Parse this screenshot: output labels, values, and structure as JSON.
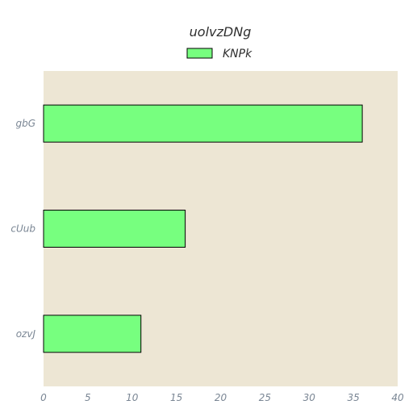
{
  "chart_data": {
    "type": "bar",
    "orientation": "horizontal",
    "title": "uolvzDNg",
    "xlabel": "",
    "ylabel": "",
    "categories": [
      "gbG",
      "cUub",
      "ozvJ"
    ],
    "series": [
      {
        "name": "KNPk",
        "values": [
          36,
          16,
          11
        ]
      }
    ],
    "xlim": [
      0,
      40
    ],
    "xticks": [
      "0",
      "5",
      "10",
      "15",
      "20",
      "25",
      "30",
      "35",
      "40"
    ],
    "grid": false,
    "legend_position": "top-center",
    "colors": {
      "bar_fill": "#77ff7f",
      "bar_edge": "#000000",
      "plot_background": "#ede6d4"
    }
  }
}
